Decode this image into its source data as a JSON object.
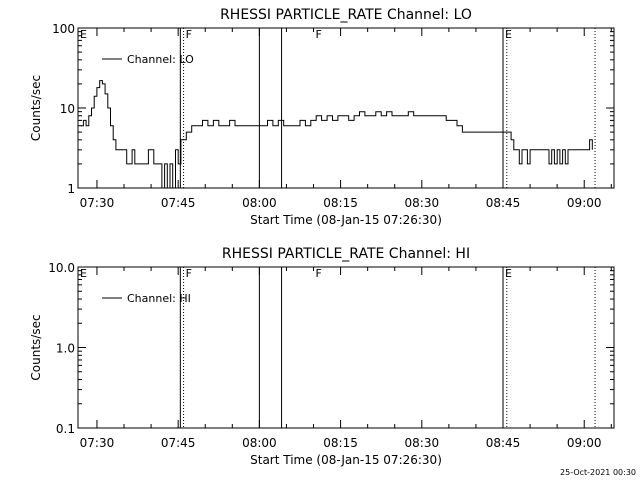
{
  "footer": {
    "timestamp": "25-Oct-2021 00:30"
  },
  "x_tick_labels": [
    "07:30",
    "07:45",
    "08:00",
    "08:15",
    "08:30",
    "08:45",
    "09:00"
  ],
  "chart_data": [
    {
      "type": "line",
      "title": "RHESSI PARTICLE_RATE Channel: LO",
      "xlabel": "Start Time (08-Jan-15 07:26:30)",
      "ylabel": "Counts/sec",
      "yscale": "log",
      "ylim": [
        1,
        100
      ],
      "y_tick_labels": [
        "1",
        "10",
        "100"
      ],
      "xlim_minutes": [
        0,
        99
      ],
      "legend": {
        "label": "Channel: LO",
        "placement": "top-left"
      },
      "markers": [
        {
          "label": "E",
          "minute": 0
        },
        {
          "label": "F",
          "minute": 19.5
        },
        {
          "label": "F",
          "minute": 43.5
        },
        {
          "label": "E",
          "minute": 78.5
        }
      ],
      "vertical_lines": [
        {
          "minute": 19.5,
          "style": "dotted"
        },
        {
          "minute": 18.9,
          "style": "solid"
        },
        {
          "minute": 33.5,
          "style": "solid"
        },
        {
          "minute": 37.6,
          "style": "solid"
        },
        {
          "minute": 78.5,
          "style": "solid"
        },
        {
          "minute": 79.2,
          "style": "dotted"
        },
        {
          "minute": 95.5,
          "style": "dotted"
        }
      ],
      "series": [
        {
          "x": [
            0.5,
            1,
            1.5,
            2,
            2.5,
            3,
            3.5,
            4,
            4.5,
            5,
            5.5,
            6,
            6.5,
            7,
            7.5,
            8,
            8.5,
            9,
            9.5,
            10,
            10.5,
            11,
            11.5,
            12,
            12.5,
            13,
            14,
            15,
            15.5,
            16,
            16.5,
            17,
            17.5,
            18,
            18.5,
            19,
            19.5,
            20,
            21,
            22,
            23,
            24,
            25,
            26,
            27,
            28,
            29,
            30,
            31,
            32,
            33,
            34,
            35,
            36,
            37,
            38,
            39,
            40,
            41,
            42,
            43,
            44,
            45,
            46,
            47,
            48,
            49,
            50,
            51,
            52,
            53,
            54,
            55,
            56,
            57,
            58,
            59,
            60,
            61,
            62,
            63,
            64,
            65,
            66,
            67,
            68,
            69,
            70,
            71,
            72,
            73,
            74,
            75,
            76,
            77,
            78,
            79,
            80,
            80.5,
            81,
            81.5,
            82,
            83,
            83.5,
            84,
            85,
            86,
            86.5,
            87,
            87.5,
            88,
            88.5,
            89,
            89.5,
            90,
            90.5,
            91,
            92,
            93,
            94,
            94.5,
            95
          ],
          "y": [
            6,
            7,
            6,
            8,
            10,
            14,
            18,
            22,
            20,
            15,
            10,
            6,
            4,
            3,
            3,
            3,
            3,
            2,
            2,
            3,
            2,
            2,
            2,
            2,
            2,
            3,
            2,
            2,
            1,
            2,
            1,
            2,
            1,
            3,
            2,
            4,
            4,
            5,
            6,
            6,
            7,
            6,
            7,
            6,
            6,
            7,
            6,
            6,
            6,
            6,
            6,
            6,
            7,
            6,
            7,
            6,
            6,
            6,
            7,
            6,
            7,
            8,
            7,
            8,
            7,
            8,
            8,
            7,
            8,
            9,
            8,
            8,
            9,
            8,
            9,
            8,
            8,
            8,
            9,
            8,
            8,
            8,
            8,
            8,
            8,
            7,
            7,
            6,
            5,
            5,
            5,
            5,
            5,
            5,
            5,
            5,
            5,
            4,
            3,
            3,
            2,
            3,
            2,
            3,
            3,
            3,
            3,
            3,
            2,
            3,
            2,
            3,
            2,
            3,
            2,
            3,
            3,
            3,
            3,
            3,
            4,
            3
          ]
        }
      ]
    },
    {
      "type": "line",
      "title": "RHESSI PARTICLE_RATE Channel: HI",
      "xlabel": "Start Time (08-Jan-15 07:26:30)",
      "ylabel": "Counts/sec",
      "yscale": "log",
      "ylim": [
        0.1,
        10
      ],
      "y_tick_labels": [
        "0.1",
        "1.0",
        "10.0"
      ],
      "xlim_minutes": [
        0,
        99
      ],
      "legend": {
        "label": "Channel: HI",
        "placement": "top-left"
      },
      "markers": [
        {
          "label": "E",
          "minute": 0
        },
        {
          "label": "F",
          "minute": 19.5
        },
        {
          "label": "F",
          "minute": 43.5
        },
        {
          "label": "E",
          "minute": 78.5
        }
      ],
      "vertical_lines": [
        {
          "minute": 19.5,
          "style": "dotted"
        },
        {
          "minute": 18.9,
          "style": "solid"
        },
        {
          "minute": 33.5,
          "style": "solid"
        },
        {
          "minute": 37.6,
          "style": "solid"
        },
        {
          "minute": 78.5,
          "style": "solid"
        },
        {
          "minute": 79.2,
          "style": "dotted"
        },
        {
          "minute": 95.5,
          "style": "dotted"
        }
      ],
      "series": []
    }
  ]
}
